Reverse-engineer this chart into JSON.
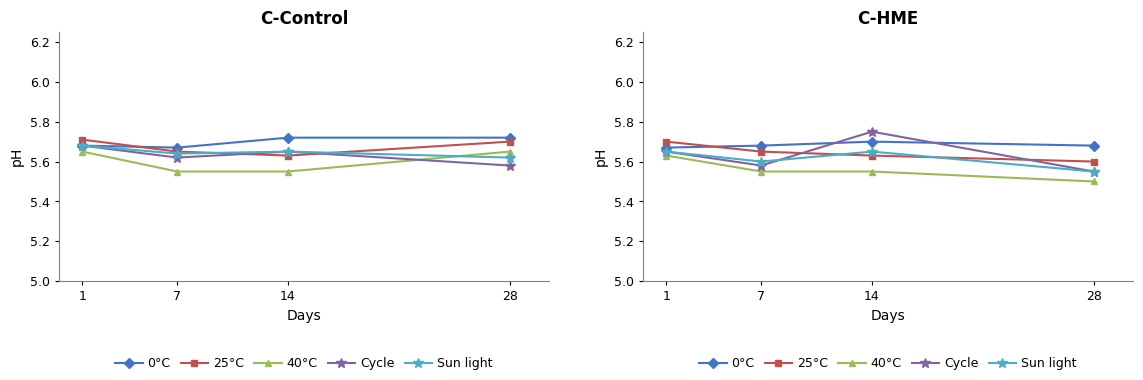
{
  "days": [
    1,
    7,
    14,
    28
  ],
  "panels": [
    {
      "title": "C-Control",
      "series": {
        "0°C": [
          5.68,
          5.67,
          5.72,
          5.72
        ],
        "25°C": [
          5.71,
          5.65,
          5.63,
          5.7
        ],
        "40°C": [
          5.65,
          5.55,
          5.55,
          5.65
        ],
        "Cycle": [
          5.68,
          5.62,
          5.65,
          5.58
        ],
        "Sun light": [
          5.68,
          5.64,
          5.65,
          5.62
        ]
      }
    },
    {
      "title": "C-HME",
      "series": {
        "0°C": [
          5.67,
          5.68,
          5.7,
          5.68
        ],
        "25°C": [
          5.7,
          5.65,
          5.63,
          5.6
        ],
        "40°C": [
          5.63,
          5.55,
          5.55,
          5.5
        ],
        "Cycle": [
          5.65,
          5.58,
          5.75,
          5.55
        ],
        "Sun light": [
          5.65,
          5.6,
          5.65,
          5.55
        ]
      }
    }
  ],
  "series_styles": {
    "0°C": {
      "color": "#4472C4",
      "marker": "D",
      "markersize": 5
    },
    "25°C": {
      "color": "#C0504D",
      "marker": "s",
      "markersize": 5
    },
    "40°C": {
      "color": "#9BBB59",
      "marker": "^",
      "markersize": 5
    },
    "Cycle": {
      "color": "#8064A2",
      "marker": "*",
      "markersize": 7
    },
    "Sun light": {
      "color": "#4BACC6",
      "marker": "*",
      "markersize": 7
    }
  },
  "ylim": [
    5.0,
    6.25
  ],
  "yticks": [
    5.0,
    5.2,
    5.4,
    5.6,
    5.8,
    6.0,
    6.2
  ],
  "xlabel": "Days",
  "ylabel": "pH",
  "background_color": "#FFFFFF",
  "legend_order": [
    "0°C",
    "25°C",
    "40°C",
    "Cycle",
    "Sun light"
  ],
  "axis_color": "#808080",
  "tick_color": "#000000",
  "title_fontsize": 12,
  "label_fontsize": 10,
  "tick_fontsize": 9,
  "legend_fontsize": 9,
  "linewidth": 1.5
}
